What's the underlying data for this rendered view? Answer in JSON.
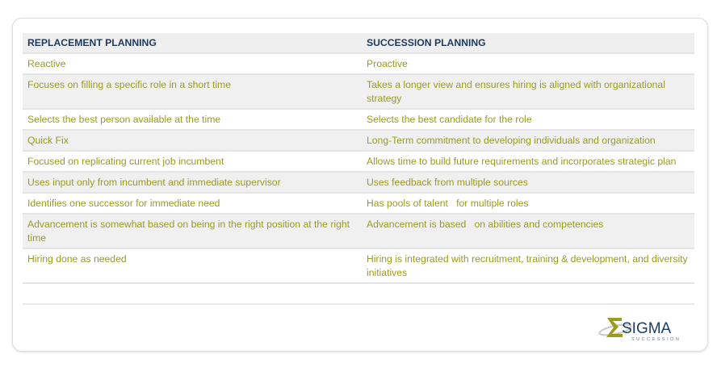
{
  "table": {
    "headers": [
      "REPLACEMENT PLANNING",
      "SUCCESSION PLANNING"
    ],
    "rows": [
      [
        "Reactive",
        "Proactive"
      ],
      [
        "Focuses on filling a specific role in a short time",
        "Takes a longer view and ensures hiring is aligned with organizational strategy"
      ],
      [
        "Selects the best person available at the time",
        "Selects the best candidate for the role"
      ],
      [
        "Quick Fix",
        "Long-Term commitment to developing individuals and organization"
      ],
      [
        "Focused on replicating current job incumbent",
        "Allows time to build future requirements and incorporates strategic plan"
      ],
      [
        "Uses input only from incumbent and immediate supervisor",
        "Uses feedback from multiple sources"
      ],
      [
        "Identifies one successor for immediate need",
        "Has pools of talent   for multiple roles"
      ],
      [
        "Advancement is somewhat based on being in the right position at the right time",
        "Advancement is based   on abilities and competencies"
      ],
      [
        "Hiring done as needed",
        "Hiring is integrated with recruitment, training & development, and diversity initiatives"
      ]
    ]
  },
  "logo": {
    "name": "SIGMA",
    "tagline": "SUCCESSION"
  },
  "colors": {
    "header_text": "#1c3a5e",
    "body_text": "#9a9b1f",
    "stripe": "#f0f0f0"
  }
}
